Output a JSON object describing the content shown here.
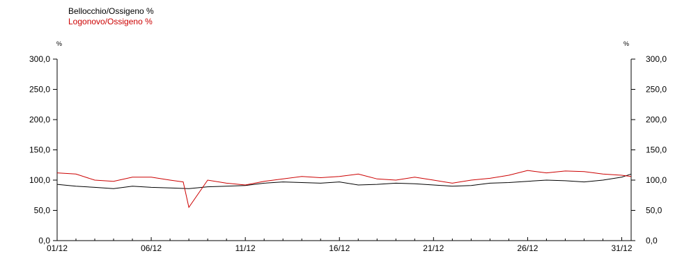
{
  "chart_data": {
    "type": "line",
    "title": "",
    "xlabel": "",
    "ylabel": "",
    "y_unit_left": "%",
    "y_unit_right": "%",
    "ylim": [
      0,
      300
    ],
    "yticks": [
      0,
      50,
      100,
      150,
      200,
      250,
      300
    ],
    "ytick_labels": [
      "0,0",
      "50,0",
      "100,0",
      "150,0",
      "200,0",
      "250,0",
      "300,0"
    ],
    "xlim": [
      1,
      31.5
    ],
    "xticks": [
      1,
      6,
      11,
      16,
      21,
      26,
      31
    ],
    "xtick_labels": [
      "01/12",
      "06/12",
      "11/12",
      "16/12",
      "21/12",
      "26/12",
      "31/12"
    ],
    "grid": false,
    "legend_position": "top-left",
    "series": [
      {
        "name": "Bellocchio/Ossigeno %",
        "color": "#000000",
        "x": [
          1,
          2,
          3,
          4,
          5,
          6,
          7,
          8,
          9,
          10,
          11,
          12,
          13,
          14,
          15,
          16,
          17,
          18,
          19,
          20,
          21,
          22,
          23,
          24,
          25,
          26,
          27,
          28,
          29,
          30,
          31,
          31.5
        ],
        "y": [
          93,
          90,
          88,
          86,
          90,
          88,
          87,
          86,
          89,
          90,
          91,
          95,
          97,
          96,
          95,
          97,
          92,
          93,
          95,
          94,
          92,
          90,
          91,
          95,
          96,
          98,
          100,
          99,
          97,
          100,
          105,
          110
        ]
      },
      {
        "name": "Logonovo/Ossigeno %",
        "color": "#cc0000",
        "x": [
          1,
          2,
          3,
          4,
          5,
          6,
          7,
          7.7,
          8,
          9,
          10,
          11,
          12,
          13,
          14,
          15,
          16,
          17,
          18,
          19,
          20,
          21,
          22,
          23,
          24,
          25,
          26,
          27,
          28,
          29,
          30,
          31,
          31.5
        ],
        "y": [
          112,
          110,
          100,
          98,
          105,
          105,
          100,
          97,
          55,
          100,
          95,
          92,
          98,
          102,
          106,
          104,
          106,
          110,
          102,
          100,
          105,
          100,
          95,
          100,
          103,
          108,
          116,
          112,
          115,
          114,
          110,
          108,
          106
        ]
      }
    ]
  }
}
